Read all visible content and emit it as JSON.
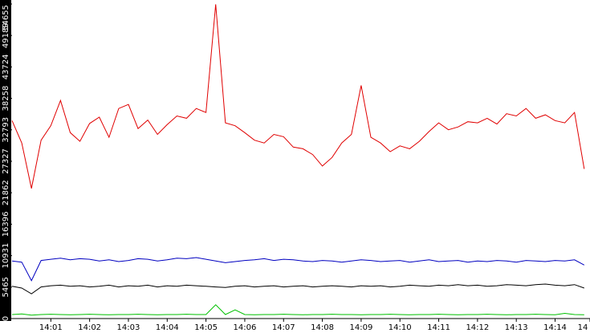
{
  "chart_data": {
    "type": "line",
    "xlim": [
      0,
      14.9
    ],
    "xticks": [
      {
        "value": 1,
        "label": "14:01"
      },
      {
        "value": 2,
        "label": "14:02"
      },
      {
        "value": 3,
        "label": "14:03"
      },
      {
        "value": 4,
        "label": "14:04"
      },
      {
        "value": 5,
        "label": "14:05"
      },
      {
        "value": 6,
        "label": "14:06"
      },
      {
        "value": 7,
        "label": "14:07"
      },
      {
        "value": 8,
        "label": "14:08"
      },
      {
        "value": 9,
        "label": "14:09"
      },
      {
        "value": 10,
        "label": "14:10"
      },
      {
        "value": 11,
        "label": "14:11"
      },
      {
        "value": 12,
        "label": "14:12"
      },
      {
        "value": 13,
        "label": "14:13"
      },
      {
        "value": 14,
        "label": "14:14"
      },
      {
        "value": 14.9,
        "label": "14"
      }
    ],
    "x": [
      0,
      0.25,
      0.5,
      0.75,
      1,
      1.25,
      1.5,
      1.75,
      2,
      2.25,
      2.5,
      2.75,
      3,
      3.25,
      3.5,
      3.75,
      4,
      4.25,
      4.5,
      4.75,
      5,
      5.25,
      5.5,
      5.75,
      6,
      6.25,
      6.5,
      6.75,
      7,
      7.25,
      7.5,
      7.75,
      8,
      8.25,
      8.5,
      8.75,
      9,
      9.25,
      9.5,
      9.75,
      10,
      10.25,
      10.5,
      10.75,
      11,
      11.25,
      11.5,
      11.75,
      12,
      12.25,
      12.5,
      12.75,
      13,
      13.25,
      13.5,
      13.75,
      14,
      14.25,
      14.5,
      14.75
    ],
    "ylim": [
      0,
      54655
    ],
    "yticks": [
      0,
      5465,
      10931,
      16396,
      21862,
      27327,
      32793,
      38258,
      43724,
      49189,
      54655
    ],
    "series": [
      {
        "color": "#e00000",
        "values": [
          34400,
          30500,
          22600,
          31000,
          33500,
          37900,
          32300,
          30800,
          33900,
          35000,
          31500,
          36500,
          37200,
          33000,
          34500,
          32000,
          33700,
          35200,
          34800,
          36500,
          35800,
          54600,
          34000,
          33500,
          32300,
          31000,
          30500,
          32000,
          31600,
          29800,
          29500,
          28500,
          26500,
          28000,
          30500,
          32000,
          40500,
          31500,
          30500,
          29000,
          30000,
          29500,
          30800,
          32500,
          34000,
          32800,
          33300,
          34200,
          34000,
          34800,
          33800,
          35600,
          35200,
          36500,
          34800,
          35400,
          34400,
          34000,
          35800,
          26000
        ]
      },
      {
        "color": "#0000c0",
        "values": [
          10000,
          9800,
          6600,
          10100,
          10300,
          10500,
          10200,
          10400,
          10300,
          10000,
          10200,
          9900,
          10100,
          10400,
          10300,
          10000,
          10200,
          10500,
          10400,
          10600,
          10300,
          10000,
          9700,
          9900,
          10100,
          10200,
          10400,
          10100,
          10300,
          10200,
          10000,
          9900,
          10100,
          10000,
          9800,
          10000,
          10200,
          10100,
          9900,
          10000,
          10100,
          9800,
          10000,
          10200,
          9900,
          10000,
          10100,
          9800,
          10000,
          9900,
          10100,
          10000,
          9800,
          10100,
          10000,
          9900,
          10100,
          10000,
          10200,
          9300
        ]
      },
      {
        "color": "#000000",
        "values": [
          5600,
          5300,
          4300,
          5500,
          5700,
          5800,
          5600,
          5700,
          5500,
          5600,
          5800,
          5500,
          5700,
          5600,
          5800,
          5500,
          5700,
          5600,
          5800,
          5700,
          5600,
          5500,
          5400,
          5600,
          5700,
          5500,
          5600,
          5700,
          5500,
          5600,
          5700,
          5500,
          5600,
          5700,
          5600,
          5500,
          5700,
          5600,
          5700,
          5500,
          5600,
          5800,
          5700,
          5600,
          5800,
          5700,
          5900,
          5700,
          5800,
          5600,
          5700,
          5900,
          5800,
          5700,
          5900,
          6000,
          5800,
          5700,
          5900,
          5300
        ]
      },
      {
        "color": "#00c000",
        "values": [
          700,
          800,
          600,
          700,
          750,
          700,
          650,
          700,
          750,
          700,
          650,
          700,
          700,
          750,
          700,
          650,
          700,
          700,
          750,
          700,
          700,
          2400,
          700,
          1500,
          700,
          650,
          700,
          700,
          750,
          700,
          650,
          700,
          700,
          750,
          700,
          700,
          650,
          700,
          700,
          750,
          700,
          650,
          700,
          700,
          750,
          700,
          650,
          700,
          700,
          750,
          700,
          650,
          700,
          700,
          750,
          700,
          650,
          900,
          700,
          650
        ]
      }
    ]
  }
}
